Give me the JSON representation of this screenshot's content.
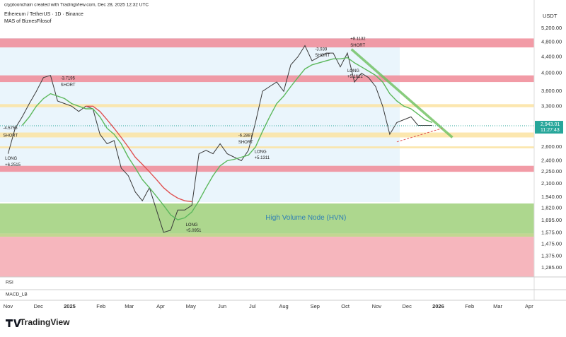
{
  "header": {
    "credit": "cryptoonchain created with TradingView.com, Dec 28, 2025 12:32 UTC",
    "symbol": "Ethereum / TetherUS · 1D · Binance",
    "indicator": "MAS of BiznesFilosof"
  },
  "footer": {
    "brand": "TradingView"
  },
  "panes": {
    "rsi": "RSI",
    "macd": "MACD_LB"
  },
  "chart_data": {
    "type": "line",
    "axis_label": "USDT",
    "log_scale": true,
    "xlim": [
      -8,
      521
    ],
    "xticks": [
      {
        "value": 0,
        "label": "Nov"
      },
      {
        "value": 30,
        "label": "Dec"
      },
      {
        "value": 61,
        "label": "2025"
      },
      {
        "value": 92,
        "label": "Feb"
      },
      {
        "value": 120,
        "label": "Mar"
      },
      {
        "value": 151,
        "label": "Apr"
      },
      {
        "value": 181,
        "label": "May"
      },
      {
        "value": 212,
        "label": "Jun"
      },
      {
        "value": 242,
        "label": "Jul"
      },
      {
        "value": 273,
        "label": "Aug"
      },
      {
        "value": 304,
        "label": "Sep"
      },
      {
        "value": 334,
        "label": "Oct"
      },
      {
        "value": 365,
        "label": "Nov"
      },
      {
        "value": 395,
        "label": "Dec"
      },
      {
        "value": 426,
        "label": "2026"
      },
      {
        "value": 457,
        "label": "Feb"
      },
      {
        "value": 485,
        "label": "Mar"
      },
      {
        "value": 516,
        "label": "Apr"
      }
    ],
    "ylim": [
      1218,
      5885
    ],
    "yticks": [
      {
        "value": 5200,
        "label": "5,200.00"
      },
      {
        "value": 4800,
        "label": "4,800.00"
      },
      {
        "value": 4400,
        "label": "4,400.00"
      },
      {
        "value": 4000,
        "label": "4,000.00"
      },
      {
        "value": 3600,
        "label": "3,600.00"
      },
      {
        "value": 3300,
        "label": "3,300.00"
      },
      {
        "value": 2600,
        "label": "2,600.00"
      },
      {
        "value": 2400,
        "label": "2,400.00"
      },
      {
        "value": 2250,
        "label": "2,250.00"
      },
      {
        "value": 2100,
        "label": "2,100.00"
      },
      {
        "value": 1940,
        "label": "1,940.00"
      },
      {
        "value": 1820,
        "label": "1,820.00"
      },
      {
        "value": 1695,
        "label": "1,695.00"
      },
      {
        "value": 1575,
        "label": "1,575.00"
      },
      {
        "value": 1475,
        "label": "1,475.00"
      },
      {
        "value": 1375,
        "label": "1,375.00"
      },
      {
        "value": 1285,
        "label": "1,285.00"
      }
    ],
    "x": [
      0,
      7,
      14,
      21,
      28,
      35,
      42,
      49,
      56,
      63,
      70,
      77,
      84,
      91,
      98,
      105,
      112,
      119,
      126,
      133,
      140,
      147,
      154,
      161,
      168,
      175,
      182,
      189,
      196,
      203,
      210,
      217,
      224,
      231,
      238,
      245,
      252,
      259,
      266,
      273,
      280,
      287,
      294,
      301,
      308,
      315,
      322,
      329,
      336,
      343,
      350,
      357,
      364,
      371,
      378,
      385,
      392,
      399,
      406,
      413,
      420
    ],
    "series": [
      {
        "name": "ETHUSDT",
        "color": "#3a3a3a",
        "values": [
          2500,
          2900,
          3100,
          3350,
          3600,
          3900,
          3950,
          3400,
          3350,
          3300,
          3200,
          3300,
          3250,
          2800,
          2650,
          2700,
          2300,
          2200,
          2000,
          1900,
          2050,
          1800,
          1580,
          1600,
          1800,
          1800,
          1850,
          2500,
          2550,
          2500,
          2650,
          2500,
          2450,
          2400,
          2550,
          3000,
          3600,
          3700,
          3800,
          3600,
          4200,
          4400,
          4700,
          4300,
          4400,
          4500,
          4500,
          4150,
          4500,
          3800,
          4000,
          3900,
          3700,
          3300,
          2800,
          3000,
          3050,
          3100,
          2950,
          2950,
          2950
        ]
      },
      {
        "name": "MA fast",
        "color": "#5cb85c",
        "values": [
          null,
          null,
          2950,
          3100,
          3300,
          3450,
          3550,
          3500,
          3450,
          3350,
          3300,
          3250,
          3250,
          3100,
          2900,
          2800,
          2650,
          2450,
          2300,
          2150,
          2050,
          1950,
          1850,
          1750,
          1700,
          1720,
          1780,
          1900,
          2050,
          2200,
          2330,
          2400,
          2420,
          2450,
          2480,
          2600,
          2850,
          3100,
          3350,
          3500,
          3700,
          3900,
          4100,
          4200,
          4250,
          4300,
          4350,
          4350,
          4380,
          4250,
          4150,
          4050,
          3950,
          3800,
          3550,
          3400,
          3300,
          3250,
          3150,
          3050,
          3000
        ]
      },
      {
        "name": "MA slow",
        "color": "#e05252",
        "values": [
          null,
          null,
          null,
          null,
          null,
          null,
          null,
          null,
          null,
          null,
          null,
          3300,
          3300,
          3200,
          3050,
          2900,
          2750,
          2600,
          2450,
          2350,
          2250,
          2150,
          2050,
          1980,
          1930,
          1900,
          1890,
          null,
          null,
          null,
          null,
          null,
          null,
          null,
          null,
          null,
          null,
          null,
          null,
          null,
          null,
          null,
          null,
          null,
          null,
          null,
          null,
          null,
          null,
          null,
          null,
          null,
          null,
          null,
          null,
          null,
          null,
          null,
          null,
          null,
          null
        ]
      }
    ],
    "zones": [
      {
        "low": 4650,
        "high": 4900,
        "color": "#f08a96"
      },
      {
        "low": 3800,
        "high": 3950,
        "color": "#f08a96"
      },
      {
        "low": 2250,
        "high": 2330,
        "color": "#f08a96"
      },
      {
        "low": 3280,
        "high": 3340,
        "color": "#fbe3a1"
      },
      {
        "low": 2750,
        "high": 2830,
        "color": "#fbe3a1"
      },
      {
        "low": 2580,
        "high": 2610,
        "color": "#fbe3a1"
      },
      {
        "low": 1570,
        "high": 1870,
        "color": "#9fd07a"
      },
      {
        "low": 1540,
        "high": 1570,
        "color": "#b8cf7e"
      },
      {
        "low": 1218,
        "high": 1540,
        "color": "#f5a9b1"
      }
    ],
    "zone_label": {
      "text": "High Volume Node (HVN)",
      "x": 255,
      "y": 1720
    },
    "trendline": {
      "color": "#6cbf5c",
      "x": [
        340,
        440
      ],
      "values": [
        4600,
        2750
      ]
    },
    "support": {
      "color": "#e05252",
      "x": [
        385,
        430
      ],
      "values": [
        2680,
        2900
      ]
    },
    "annotations": [
      {
        "text": "-4.5755",
        "x": -5,
        "y": 2900
      },
      {
        "text": "SHORT",
        "x": -5,
        "y": 2780
      },
      {
        "text": "LONG",
        "x": -3,
        "y": 2430
      },
      {
        "text": "+6.2515",
        "x": -3,
        "y": 2340
      },
      {
        "text": "-3.7195",
        "x": 52,
        "y": 3880
      },
      {
        "text": "SHORT",
        "x": 52,
        "y": 3730
      },
      {
        "text": "-6.2887",
        "x": 228,
        "y": 2780
      },
      {
        "text": "SHORT",
        "x": 228,
        "y": 2670
      },
      {
        "text": "LONG",
        "x": 244,
        "y": 2530
      },
      {
        "text": "+5.1311",
        "x": 244,
        "y": 2440
      },
      {
        "text": "LONG",
        "x": 176,
        "y": 1650
      },
      {
        "text": "+5.0951",
        "x": 176,
        "y": 1595
      },
      {
        "text": "-3.939",
        "x": 304,
        "y": 4600
      },
      {
        "text": "SHORT",
        "x": 304,
        "y": 4440
      },
      {
        "text": "+8.1132",
        "x": 339,
        "y": 4890
      },
      {
        "text": "SHORT",
        "x": 339,
        "y": 4700
      },
      {
        "text": "LONG",
        "x": 336,
        "y": 4050
      },
      {
        "text": "+5.1612",
        "x": 336,
        "y": 3920
      }
    ],
    "last_price": {
      "value": 2943.01,
      "label": "2,943.01",
      "countdown": "11:27:43",
      "color": "#26a69a"
    }
  }
}
